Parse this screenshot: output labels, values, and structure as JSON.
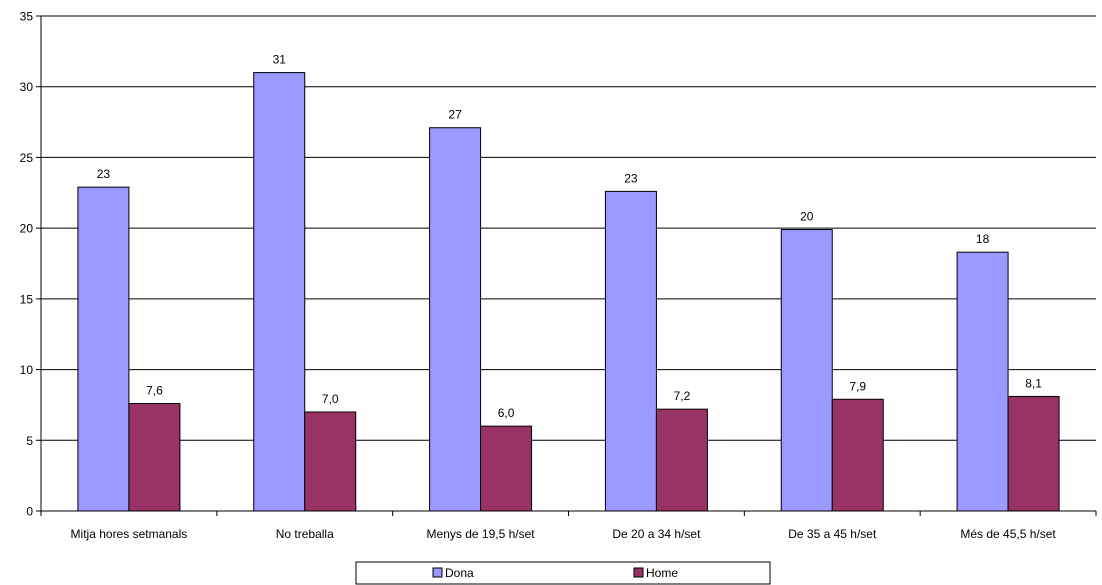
{
  "chart_data": {
    "type": "bar",
    "categories": [
      "Mitja hores setmanals",
      "No treballa",
      "Menys de 19,5 h/set",
      "De 20 a 34 h/set",
      "De 35 a 45 h/set",
      "Més de 45,5 h/set"
    ],
    "series": [
      {
        "name": "Dona",
        "values": [
          22.9,
          31.0,
          27.1,
          22.6,
          19.9,
          18.3
        ],
        "labels": [
          "23",
          "31",
          "27",
          "23",
          "20",
          "18"
        ],
        "color": "#9999ff"
      },
      {
        "name": "Home",
        "values": [
          7.6,
          7.0,
          6.0,
          7.2,
          7.9,
          8.1
        ],
        "labels": [
          "7,6",
          "7,0",
          "6,0",
          "7,2",
          "7,9",
          "8,1"
        ],
        "color": "#993366"
      }
    ],
    "ylim": [
      0,
      35
    ],
    "yticks": [
      "0",
      "5",
      "10",
      "15",
      "20",
      "25",
      "30",
      "35"
    ],
    "grid": true,
    "legend": "bottom"
  }
}
